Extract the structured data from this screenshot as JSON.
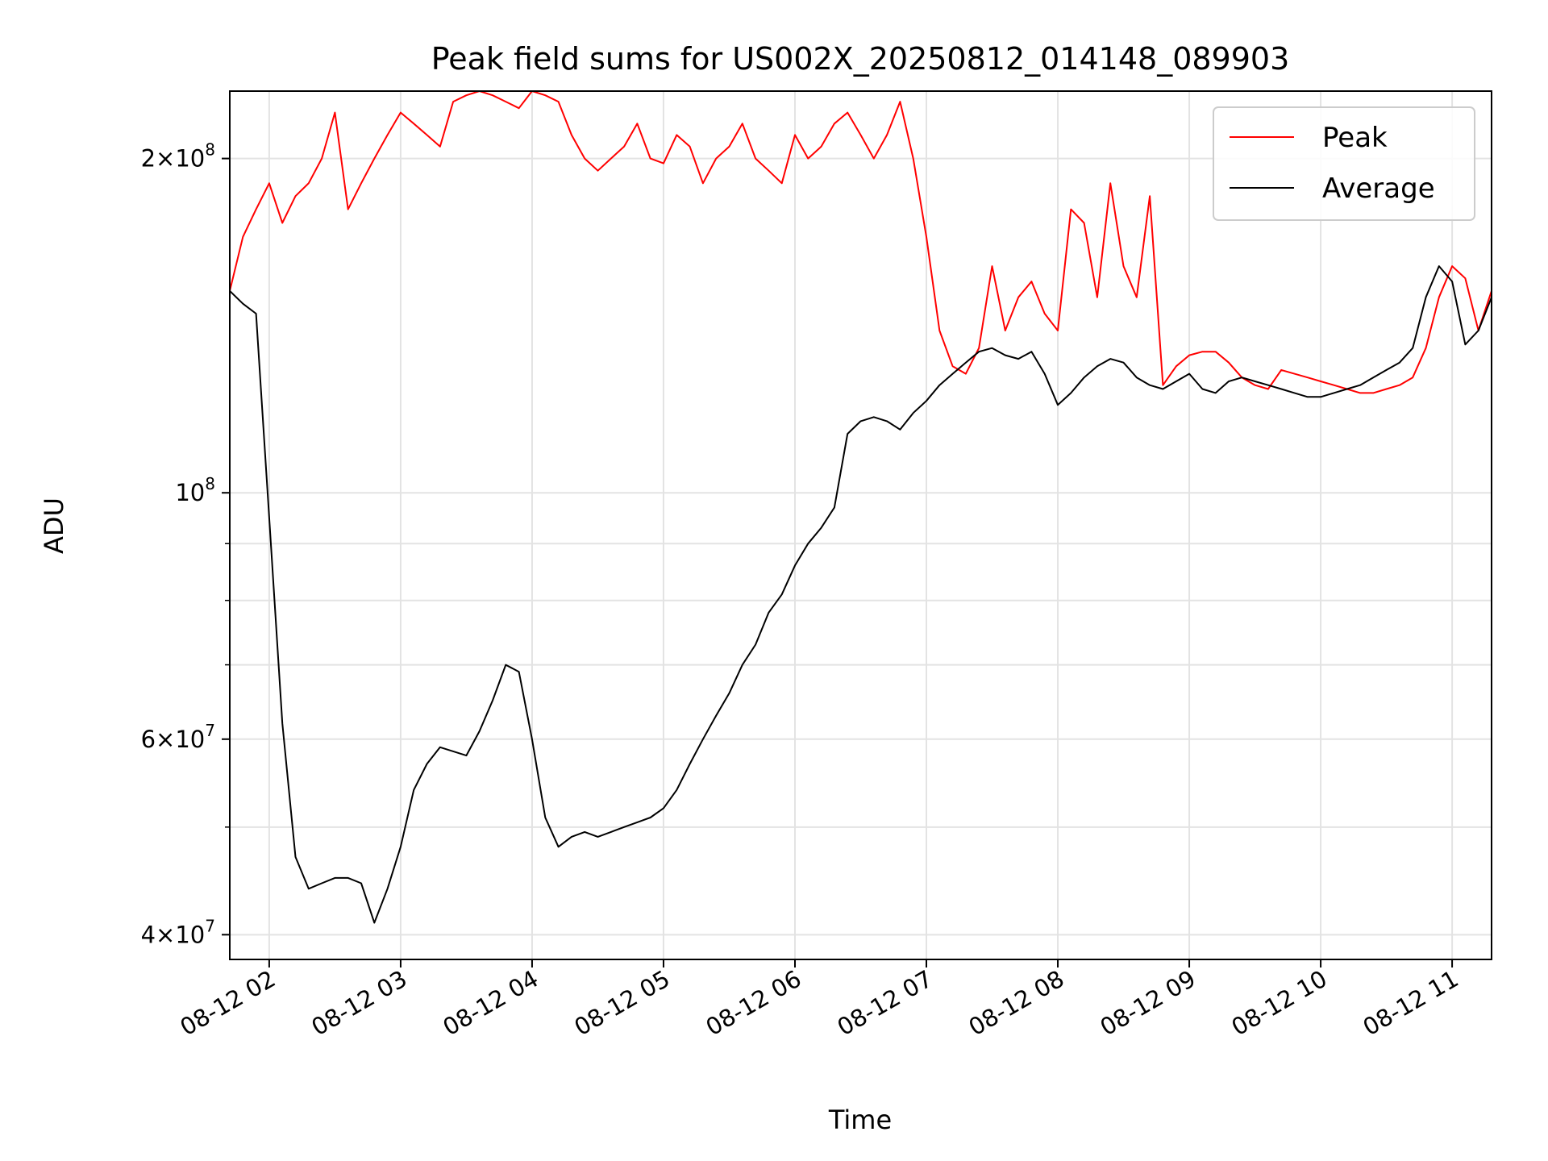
{
  "chart_data": {
    "type": "line",
    "title": "Peak field sums for US002X_20250812_014148_089903",
    "xlabel": "Time",
    "ylabel": "ADU",
    "yscale": "log",
    "xlim": [
      "08-12 01:42",
      "08-12 11:18"
    ],
    "ylim": [
      38000000,
      230000000
    ],
    "grid": true,
    "legend": {
      "position": "top-right",
      "entries": [
        "Peak",
        "Average"
      ]
    },
    "x_ticks": [
      "08-12 02",
      "08-12 03",
      "08-12 04",
      "08-12 05",
      "08-12 06",
      "08-12 07",
      "08-12 08",
      "08-12 09",
      "08-12 10",
      "08-12 11"
    ],
    "y_ticks": [
      {
        "value": 40000000,
        "mantissa": "4",
        "exponent": "7"
      },
      {
        "value": 60000000,
        "mantissa": "6",
        "exponent": "7"
      },
      {
        "value": 100000000,
        "mantissa": "",
        "exponent": "8"
      },
      {
        "value": 200000000,
        "mantissa": "2",
        "exponent": "8"
      }
    ],
    "series": [
      {
        "name": "Peak",
        "color": "#ff0000",
        "x": [
          "08-12 01:42",
          "08-12 01:48",
          "08-12 01:54",
          "08-12 02:00",
          "08-12 02:06",
          "08-12 02:12",
          "08-12 02:18",
          "08-12 02:24",
          "08-12 02:30",
          "08-12 02:36",
          "08-12 02:42",
          "08-12 02:48",
          "08-12 02:54",
          "08-12 03:00",
          "08-12 03:06",
          "08-12 03:12",
          "08-12 03:18",
          "08-12 03:24",
          "08-12 03:30",
          "08-12 03:36",
          "08-12 03:42",
          "08-12 03:48",
          "08-12 03:54",
          "08-12 04:00",
          "08-12 04:06",
          "08-12 04:12",
          "08-12 04:18",
          "08-12 04:24",
          "08-12 04:30",
          "08-12 04:36",
          "08-12 04:42",
          "08-12 04:48",
          "08-12 04:54",
          "08-12 05:00",
          "08-12 05:06",
          "08-12 05:12",
          "08-12 05:18",
          "08-12 05:24",
          "08-12 05:30",
          "08-12 05:36",
          "08-12 05:42",
          "08-12 05:48",
          "08-12 05:54",
          "08-12 06:00",
          "08-12 06:06",
          "08-12 06:12",
          "08-12 06:18",
          "08-12 06:24",
          "08-12 06:30",
          "08-12 06:36",
          "08-12 06:42",
          "08-12 06:48",
          "08-12 06:54",
          "08-12 07:00",
          "08-12 07:06",
          "08-12 07:12",
          "08-12 07:18",
          "08-12 07:24",
          "08-12 07:30",
          "08-12 07:36",
          "08-12 07:42",
          "08-12 07:48",
          "08-12 07:54",
          "08-12 08:00",
          "08-12 08:06",
          "08-12 08:12",
          "08-12 08:18",
          "08-12 08:24",
          "08-12 08:30",
          "08-12 08:36",
          "08-12 08:42",
          "08-12 08:48",
          "08-12 08:54",
          "08-12 09:00",
          "08-12 09:06",
          "08-12 09:12",
          "08-12 09:18",
          "08-12 09:24",
          "08-12 09:30",
          "08-12 09:36",
          "08-12 09:42",
          "08-12 09:48",
          "08-12 09:54",
          "08-12 10:00",
          "08-12 10:06",
          "08-12 10:12",
          "08-12 10:18",
          "08-12 10:24",
          "08-12 10:30",
          "08-12 10:36",
          "08-12 10:42",
          "08-12 10:48",
          "08-12 10:54",
          "08-12 11:00",
          "08-12 11:06",
          "08-12 11:12",
          "08-12 11:18"
        ],
        "y": [
          152000000,
          170000000,
          180000000,
          190000000,
          175000000,
          185000000,
          190000000,
          200000000,
          220000000,
          180000000,
          190000000,
          200000000,
          210000000,
          220000000,
          215000000,
          210000000,
          205000000,
          225000000,
          228000000,
          230000000,
          228000000,
          225000000,
          222000000,
          230000000,
          228000000,
          225000000,
          210000000,
          200000000,
          195000000,
          200000000,
          205000000,
          215000000,
          200000000,
          198000000,
          210000000,
          205000000,
          190000000,
          200000000,
          205000000,
          215000000,
          200000000,
          195000000,
          190000000,
          210000000,
          200000000,
          205000000,
          215000000,
          220000000,
          210000000,
          200000000,
          210000000,
          225000000,
          200000000,
          170000000,
          140000000,
          130000000,
          128000000,
          135000000,
          160000000,
          140000000,
          150000000,
          155000000,
          145000000,
          140000000,
          180000000,
          175000000,
          150000000,
          190000000,
          160000000,
          150000000,
          185000000,
          125000000,
          130000000,
          133000000,
          134000000,
          134000000,
          131000000,
          127000000,
          125000000,
          124000000,
          129000000,
          128000000,
          127000000,
          126000000,
          125000000,
          124000000,
          123000000,
          123000000,
          124000000,
          125000000,
          127000000,
          135000000,
          150000000,
          160000000,
          156000000,
          140000000,
          152000000
        ]
      },
      {
        "name": "Average",
        "color": "#000000",
        "x": [
          "08-12 01:42",
          "08-12 01:48",
          "08-12 01:54",
          "08-12 02:00",
          "08-12 02:06",
          "08-12 02:12",
          "08-12 02:18",
          "08-12 02:24",
          "08-12 02:30",
          "08-12 02:36",
          "08-12 02:42",
          "08-12 02:48",
          "08-12 02:54",
          "08-12 03:00",
          "08-12 03:06",
          "08-12 03:12",
          "08-12 03:18",
          "08-12 03:24",
          "08-12 03:30",
          "08-12 03:36",
          "08-12 03:42",
          "08-12 03:48",
          "08-12 03:54",
          "08-12 04:00",
          "08-12 04:06",
          "08-12 04:12",
          "08-12 04:18",
          "08-12 04:24",
          "08-12 04:30",
          "08-12 04:36",
          "08-12 04:42",
          "08-12 04:48",
          "08-12 04:54",
          "08-12 05:00",
          "08-12 05:06",
          "08-12 05:12",
          "08-12 05:18",
          "08-12 05:24",
          "08-12 05:30",
          "08-12 05:36",
          "08-12 05:42",
          "08-12 05:48",
          "08-12 05:54",
          "08-12 06:00",
          "08-12 06:06",
          "08-12 06:12",
          "08-12 06:18",
          "08-12 06:24",
          "08-12 06:30",
          "08-12 06:36",
          "08-12 06:42",
          "08-12 06:48",
          "08-12 06:54",
          "08-12 07:00",
          "08-12 07:06",
          "08-12 07:12",
          "08-12 07:18",
          "08-12 07:24",
          "08-12 07:30",
          "08-12 07:36",
          "08-12 07:42",
          "08-12 07:48",
          "08-12 07:54",
          "08-12 08:00",
          "08-12 08:06",
          "08-12 08:12",
          "08-12 08:18",
          "08-12 08:24",
          "08-12 08:30",
          "08-12 08:36",
          "08-12 08:42",
          "08-12 08:48",
          "08-12 08:54",
          "08-12 09:00",
          "08-12 09:06",
          "08-12 09:12",
          "08-12 09:18",
          "08-12 09:24",
          "08-12 09:30",
          "08-12 09:36",
          "08-12 09:42",
          "08-12 09:48",
          "08-12 09:54",
          "08-12 10:00",
          "08-12 10:06",
          "08-12 10:12",
          "08-12 10:18",
          "08-12 10:24",
          "08-12 10:30",
          "08-12 10:36",
          "08-12 10:42",
          "08-12 10:48",
          "08-12 10:54",
          "08-12 11:00",
          "08-12 11:06",
          "08-12 11:12",
          "08-12 11:18"
        ],
        "y": [
          152000000,
          148000000,
          145000000,
          95000000,
          62000000,
          47000000,
          44000000,
          44500000,
          45000000,
          45000000,
          44500000,
          41000000,
          44000000,
          48000000,
          54000000,
          57000000,
          59000000,
          58500000,
          58000000,
          61000000,
          65000000,
          70000000,
          69000000,
          60000000,
          51000000,
          48000000,
          49000000,
          49500000,
          49000000,
          49500000,
          50000000,
          50500000,
          51000000,
          52000000,
          54000000,
          57000000,
          60000000,
          63000000,
          66000000,
          70000000,
          73000000,
          78000000,
          81000000,
          86000000,
          90000000,
          93000000,
          97000000,
          113000000,
          116000000,
          117000000,
          116000000,
          114000000,
          118000000,
          121000000,
          125000000,
          128000000,
          131000000,
          134000000,
          135000000,
          133000000,
          132000000,
          134000000,
          128000000,
          120000000,
          123000000,
          127000000,
          130000000,
          132000000,
          131000000,
          127000000,
          125000000,
          124000000,
          126000000,
          128000000,
          124000000,
          123000000,
          126000000,
          127000000,
          126000000,
          125000000,
          124000000,
          123000000,
          122000000,
          122000000,
          123000000,
          124000000,
          125000000,
          127000000,
          129000000,
          131000000,
          135000000,
          150000000,
          160000000,
          155000000,
          136000000,
          140000000,
          150000000
        ]
      }
    ]
  }
}
